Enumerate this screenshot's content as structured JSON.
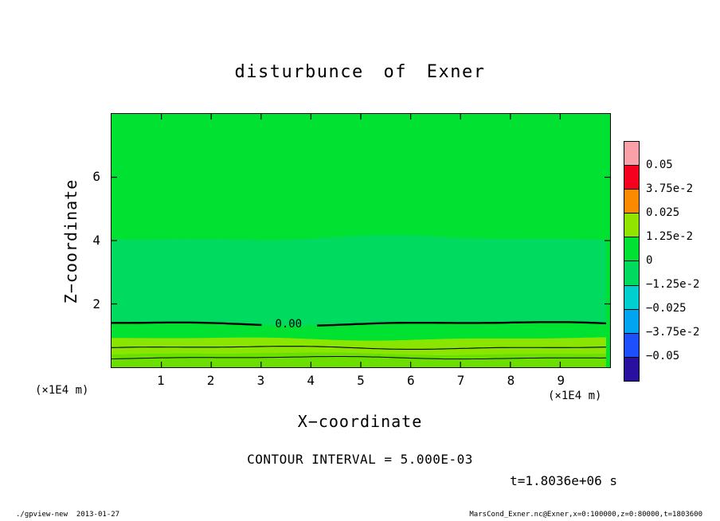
{
  "title": "disturbunce of Exner",
  "axes": {
    "x_label": "X−coordinate",
    "y_label": "Z−coordinate",
    "x_unit_left": "(×1E4 m)",
    "x_unit_right": "(×1E4 m)"
  },
  "annotations": {
    "contour_interval": "CONTOUR INTERVAL = 5.000E-03",
    "time": "t=1.8036e+06 s"
  },
  "footer": {
    "left": "./gpview-new  2013-01-27",
    "right": "MarsCond_Exner.nc@Exner,x=0:100000,z=0:80000,t=1803600"
  },
  "chart_data": {
    "type": "filled_contour",
    "title": "disturbunce of Exner",
    "xlabel": "X−coordinate (×1E4 m)",
    "ylabel": "Z−coordinate (×1E4 m)",
    "xlim": [
      0,
      10
    ],
    "zlim": [
      0,
      8
    ],
    "x_ticks": [
      1,
      2,
      3,
      4,
      5,
      6,
      7,
      8,
      9
    ],
    "z_ticks": [
      2,
      4,
      6
    ],
    "grid": false,
    "contour_interval": "5.000E-03",
    "time": "t=1.8036e+06 s",
    "shading": {
      "boundaries": [
        {
          "z": 8.0,
          "amp": 0.0
        },
        {
          "z": 4.08,
          "amp": 2.6
        },
        {
          "z": 1.38,
          "amp": 1.8
        },
        {
          "z": 0.9,
          "amp": 1.6
        },
        {
          "z": 0.42,
          "amp": 1.3
        },
        {
          "z": 0.0,
          "amp": 0.0
        }
      ],
      "band_colors": [
        "#00E132",
        "#00DA5E",
        "#00E132",
        "#8AE600",
        "#6ADF00"
      ],
      "band_levels": [
        "0 to 1.25e-2",
        "−1.25e-2 to 0",
        "0 to 1.25e-2",
        "1.25e-2 to 0.025",
        "1.25e-2 to 0.025"
      ]
    },
    "contours": [
      {
        "level": "0.00",
        "z": 1.38,
        "width": 2.4,
        "amp": 1.8,
        "label": "0.00"
      },
      {
        "level": "5.000e-3",
        "z": 0.62,
        "width": 1.1,
        "amp": 1.5,
        "label": ""
      },
      {
        "level": "1.000e-2",
        "z": 0.3,
        "width": 1.0,
        "amp": 1.2,
        "label": ""
      }
    ],
    "colorbar": {
      "tick_labels": [
        "0.05",
        "3.75e-2",
        "0.025",
        "1.25e-2",
        "0",
        "−1.25e-2",
        "−0.025",
        "−3.75e-2",
        "−0.05"
      ],
      "segment_colors": [
        "#F9A0A8",
        "#F5001E",
        "#FC8A00",
        "#90E400",
        "#00E134",
        "#00DA5E",
        "#00CFCF",
        "#00A4F0",
        "#1E4FFD",
        "#2A10A0"
      ]
    }
  }
}
